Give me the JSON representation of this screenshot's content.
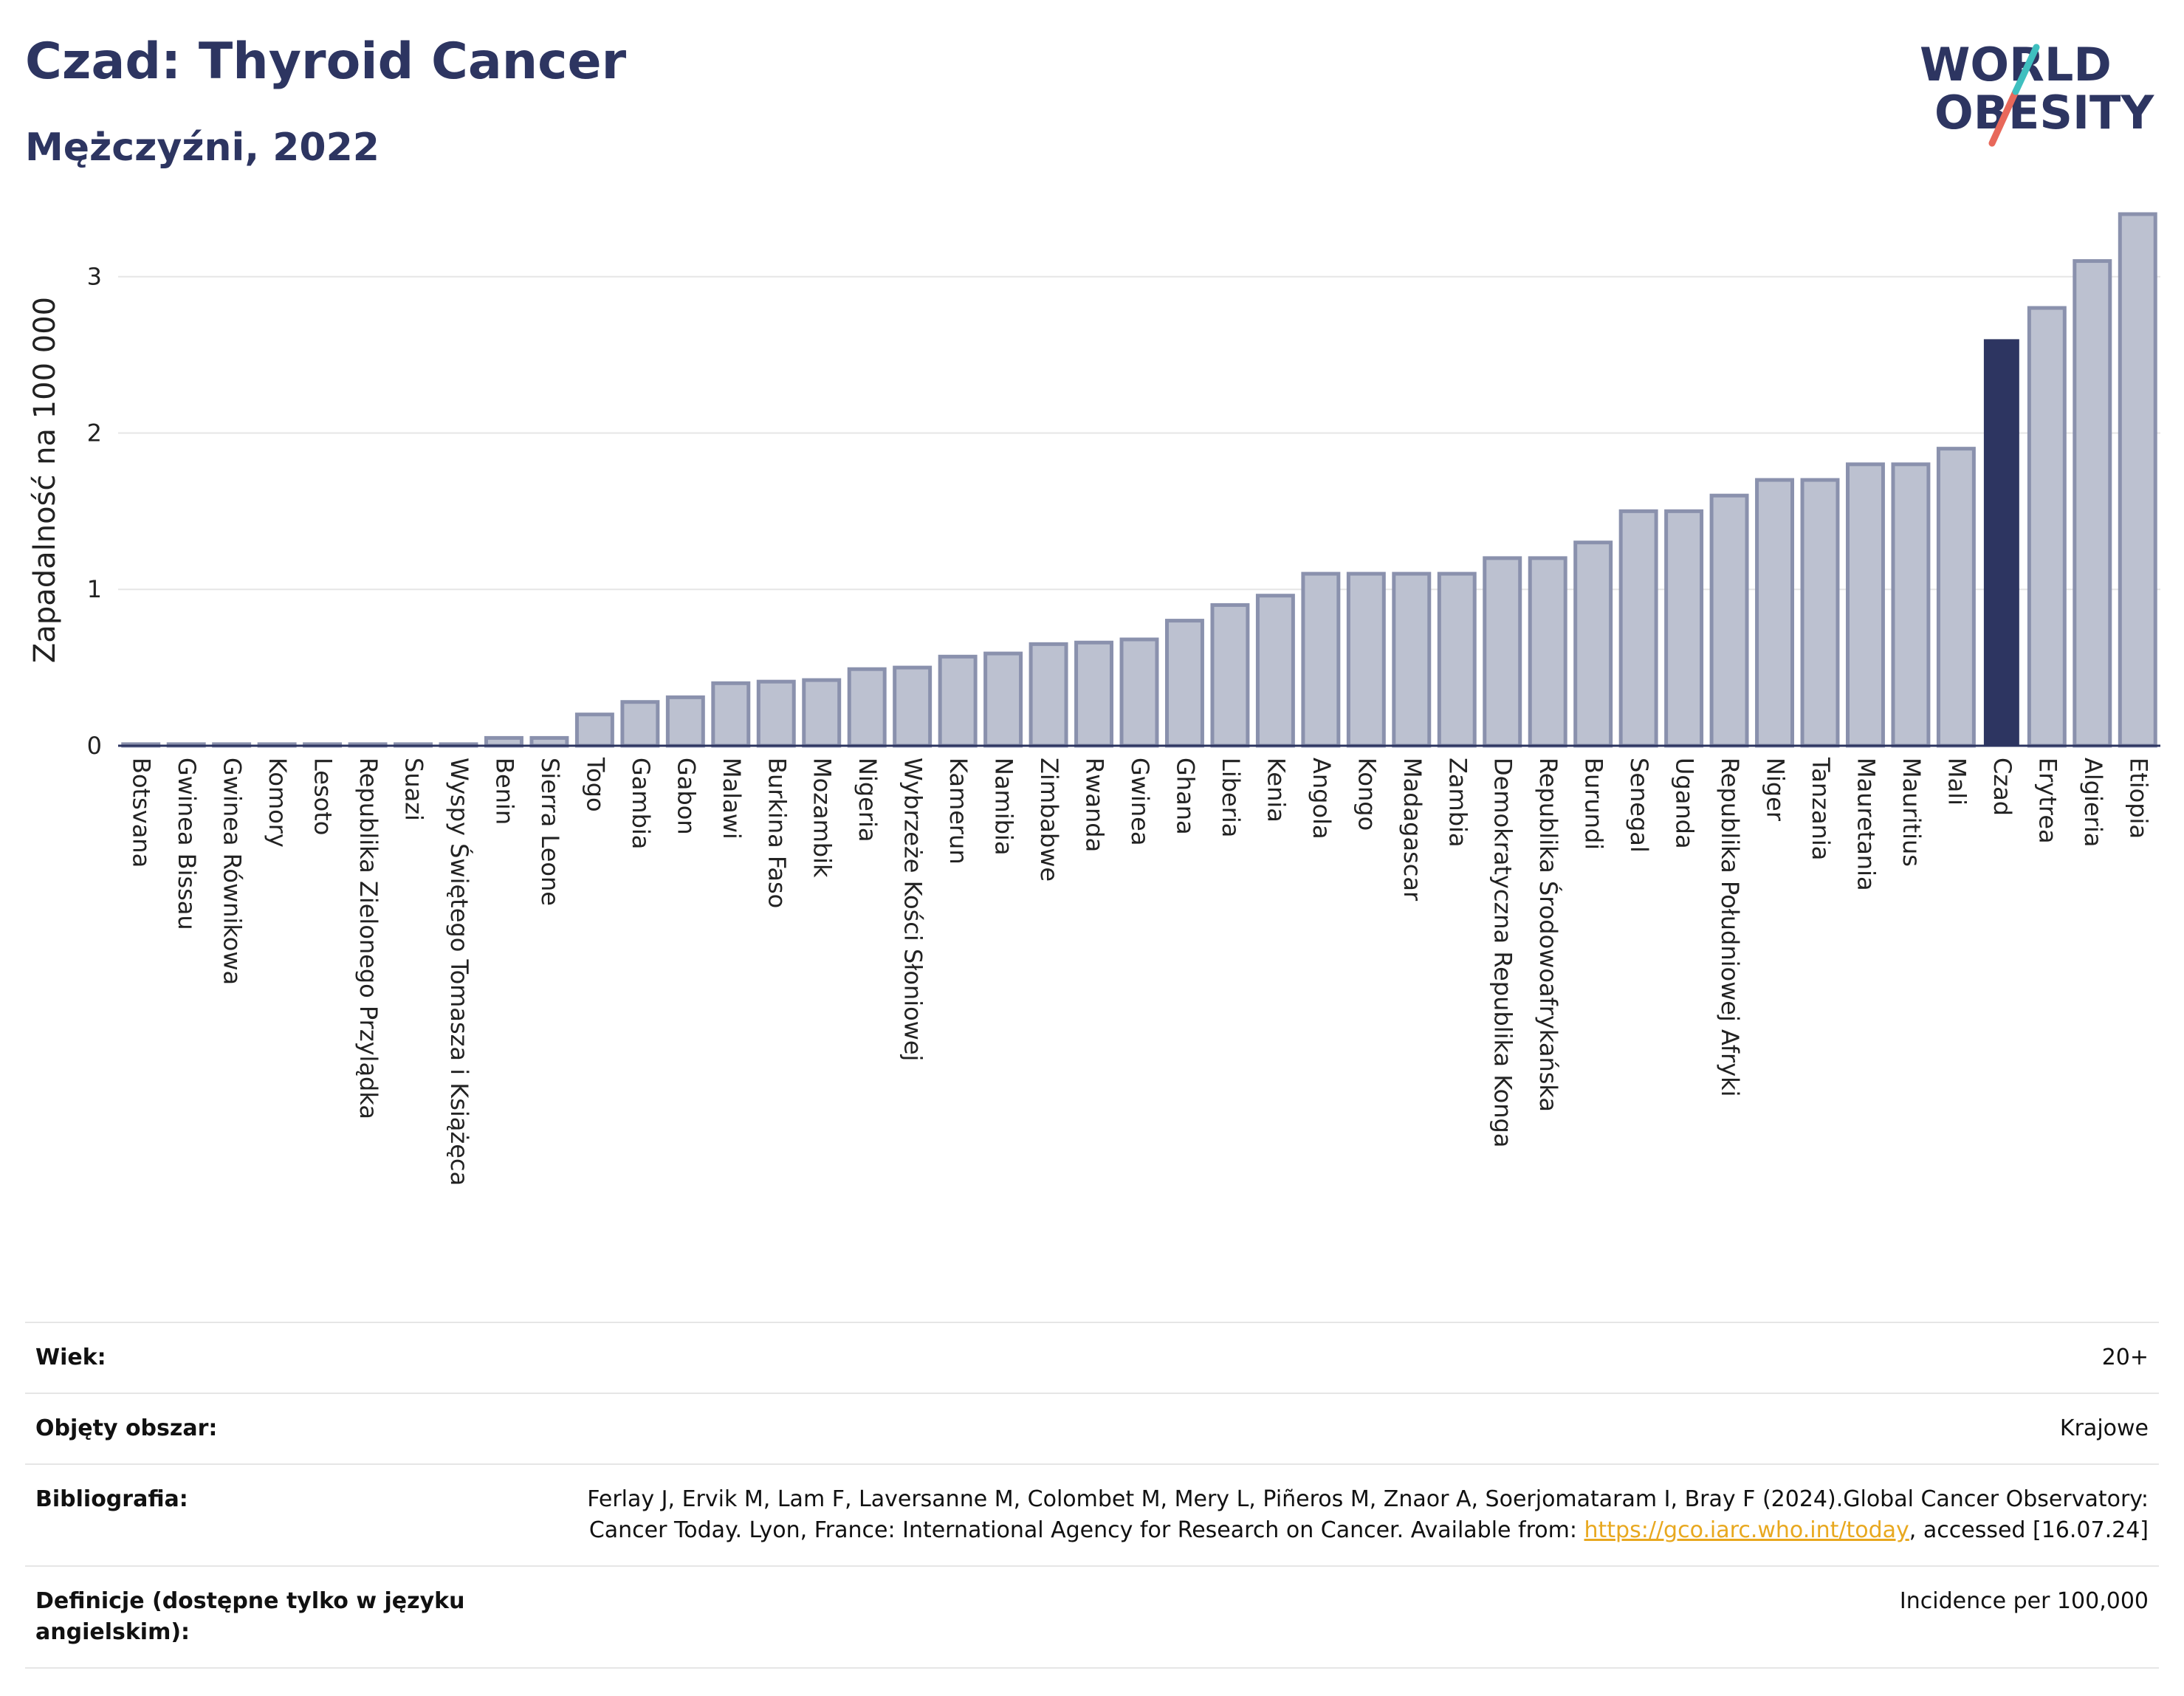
{
  "header": {
    "title": "Czad: Thyroid Cancer",
    "subtitle": "Mężczyźni, 2022"
  },
  "logo": {
    "line1": "WORLD",
    "line2": "OBESITY",
    "colors": {
      "text": "#2d3561",
      "slash_top": "#3fbfbf",
      "slash_bottom": "#e8685a"
    }
  },
  "colors": {
    "bar_default": "#bcc1d0",
    "bar_default_stroke": "#8a91ad",
    "bar_highlight": "#2d3561",
    "grid": "#e6e6e6"
  },
  "chart_data": {
    "type": "bar",
    "ylabel": "Zapadalność na 100 000",
    "ylim": [
      0,
      3.4
    ],
    "yticks": [
      0,
      1,
      2,
      3
    ],
    "grid": true,
    "highlight": "Czad",
    "categories": [
      "Botsvana",
      "Gwinea Bissau",
      "Gwinea Równikowa",
      "Komory",
      "Lesoto",
      "Republika Zielonego Przylądka",
      "Suazi",
      "Wyspy Świętego Tomasza i Książęca",
      "Benin",
      "Sierra Leone",
      "Togo",
      "Gambia",
      "Gabon",
      "Malawi",
      "Burkina Faso",
      "Mozambik",
      "Nigeria",
      "Wybrzeże Kości Słoniowej",
      "Kamerun",
      "Namibia",
      "Zimbabwe",
      "Rwanda",
      "Gwinea",
      "Ghana",
      "Liberia",
      "Kenia",
      "Angola",
      "Kongo",
      "Madagascar",
      "Zambia",
      "Demokratyczna Republika Konga",
      "Republika Środowoafrykańska",
      "Burundi",
      "Senegal",
      "Uganda",
      "Republika Południowej Afryki",
      "Niger",
      "Tanzania",
      "Mauretania",
      "Mauritius",
      "Mali",
      "Czad",
      "Erytrea",
      "Algieria",
      "Etiopia"
    ],
    "values": [
      0.01,
      0.01,
      0.01,
      0.01,
      0.01,
      0.01,
      0.01,
      0.01,
      0.05,
      0.05,
      0.2,
      0.28,
      0.31,
      0.4,
      0.41,
      0.42,
      0.49,
      0.5,
      0.57,
      0.59,
      0.65,
      0.66,
      0.68,
      0.8,
      0.9,
      0.96,
      1.1,
      1.1,
      1.1,
      1.1,
      1.2,
      1.2,
      1.3,
      1.5,
      1.5,
      1.6,
      1.7,
      1.7,
      1.8,
      1.8,
      1.9,
      2.6,
      2.8,
      3.1,
      3.4
    ]
  },
  "info": {
    "rows": [
      {
        "label": "Wiek:",
        "value": "20+"
      },
      {
        "label": "Objęty obszar:",
        "value": "Krajowe"
      },
      {
        "label": "Bibliografia:",
        "value_pre": "Ferlay J, Ervik M, Lam F, Laversanne M, Colombet M, Mery L, Piñeros M, Znaor A, Soerjomataram I, Bray F (2024).Global Cancer Observatory: Cancer Today. Lyon, France: International Agency for Research on Cancer. Available from: ",
        "link": "https://gco.iarc.who.int/today",
        "value_post": ", accessed [16.07.24]"
      },
      {
        "label": "Definicje (dostępne tylko w języku angielskim):",
        "value": "Incidence per 100,000"
      }
    ]
  }
}
